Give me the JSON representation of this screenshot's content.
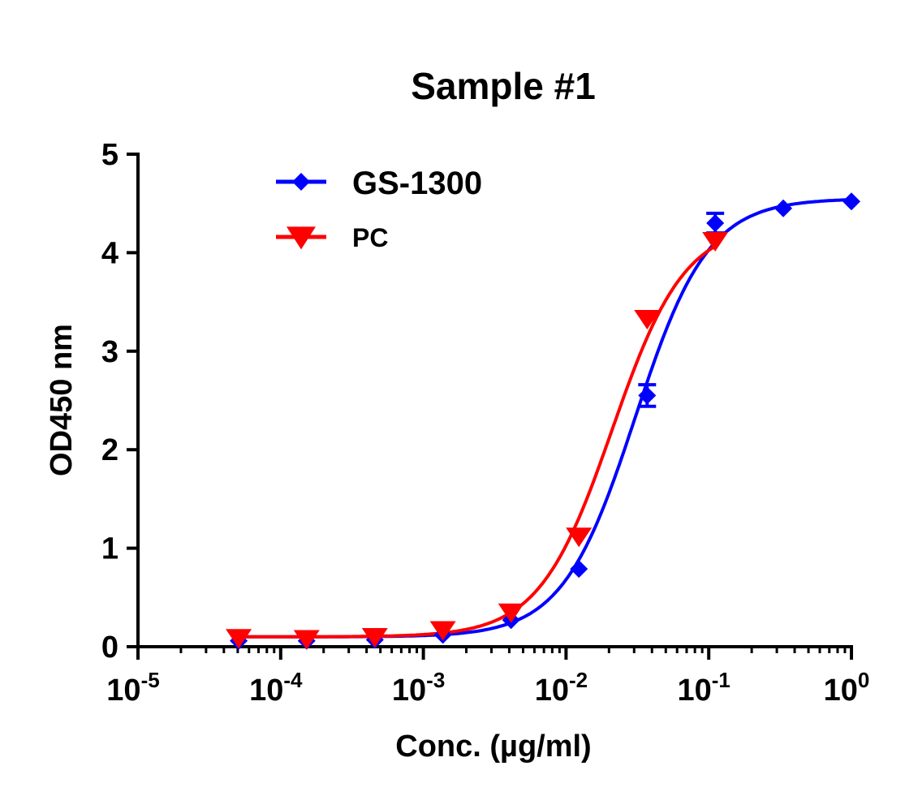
{
  "chart_data": {
    "type": "scatter",
    "title": "Sample #1",
    "xlabel": "Conc. (µg/ml)",
    "ylabel": "OD450 nm",
    "xscale": "log",
    "xlim": [
      1e-05,
      1
    ],
    "ylim": [
      0,
      5
    ],
    "x_ticks": [
      {
        "value": 1e-05,
        "base": "10",
        "exp": "-5"
      },
      {
        "value": 0.0001,
        "base": "10",
        "exp": "-4"
      },
      {
        "value": 0.001,
        "base": "10",
        "exp": "-3"
      },
      {
        "value": 0.01,
        "base": "10",
        "exp": "-2"
      },
      {
        "value": 0.1,
        "base": "10",
        "exp": "-1"
      },
      {
        "value": 1,
        "base": "10",
        "exp": "0"
      }
    ],
    "y_ticks": [
      "0",
      "1",
      "2",
      "3",
      "4",
      "5"
    ],
    "grid": false,
    "legend_position": "top-left",
    "series": [
      {
        "name": "GS-1300",
        "color": "#0000ff",
        "marker": "diamond",
        "x": [
          5.08e-05,
          0.000152,
          0.000457,
          0.00137,
          0.00412,
          0.0123,
          0.037,
          0.111,
          0.333,
          1.0
        ],
        "y": [
          0.06,
          0.06,
          0.07,
          0.12,
          0.27,
          0.79,
          2.55,
          4.3,
          4.45,
          4.52
        ],
        "err": [
          0,
          0,
          0,
          0,
          0,
          0,
          0.11,
          0.1,
          0,
          0
        ],
        "fit": {
          "bottom": 0.1,
          "top": 4.55,
          "ec50": 0.0305,
          "hill": 1.7
        }
      },
      {
        "name": "PC",
        "color": "#ff0000",
        "marker": "triangle-down",
        "x": [
          5.08e-05,
          0.000152,
          0.000457,
          0.00137,
          0.00412,
          0.0123,
          0.037,
          0.111
        ],
        "y": [
          0.09,
          0.08,
          0.1,
          0.17,
          0.35,
          1.12,
          3.33,
          4.12
        ],
        "err": [
          0,
          0,
          0,
          0,
          0,
          0,
          0,
          0
        ],
        "fit": {
          "bottom": 0.1,
          "top": 4.3,
          "ec50": 0.021,
          "hill": 1.7,
          "xmax": 0.111
        }
      }
    ]
  }
}
